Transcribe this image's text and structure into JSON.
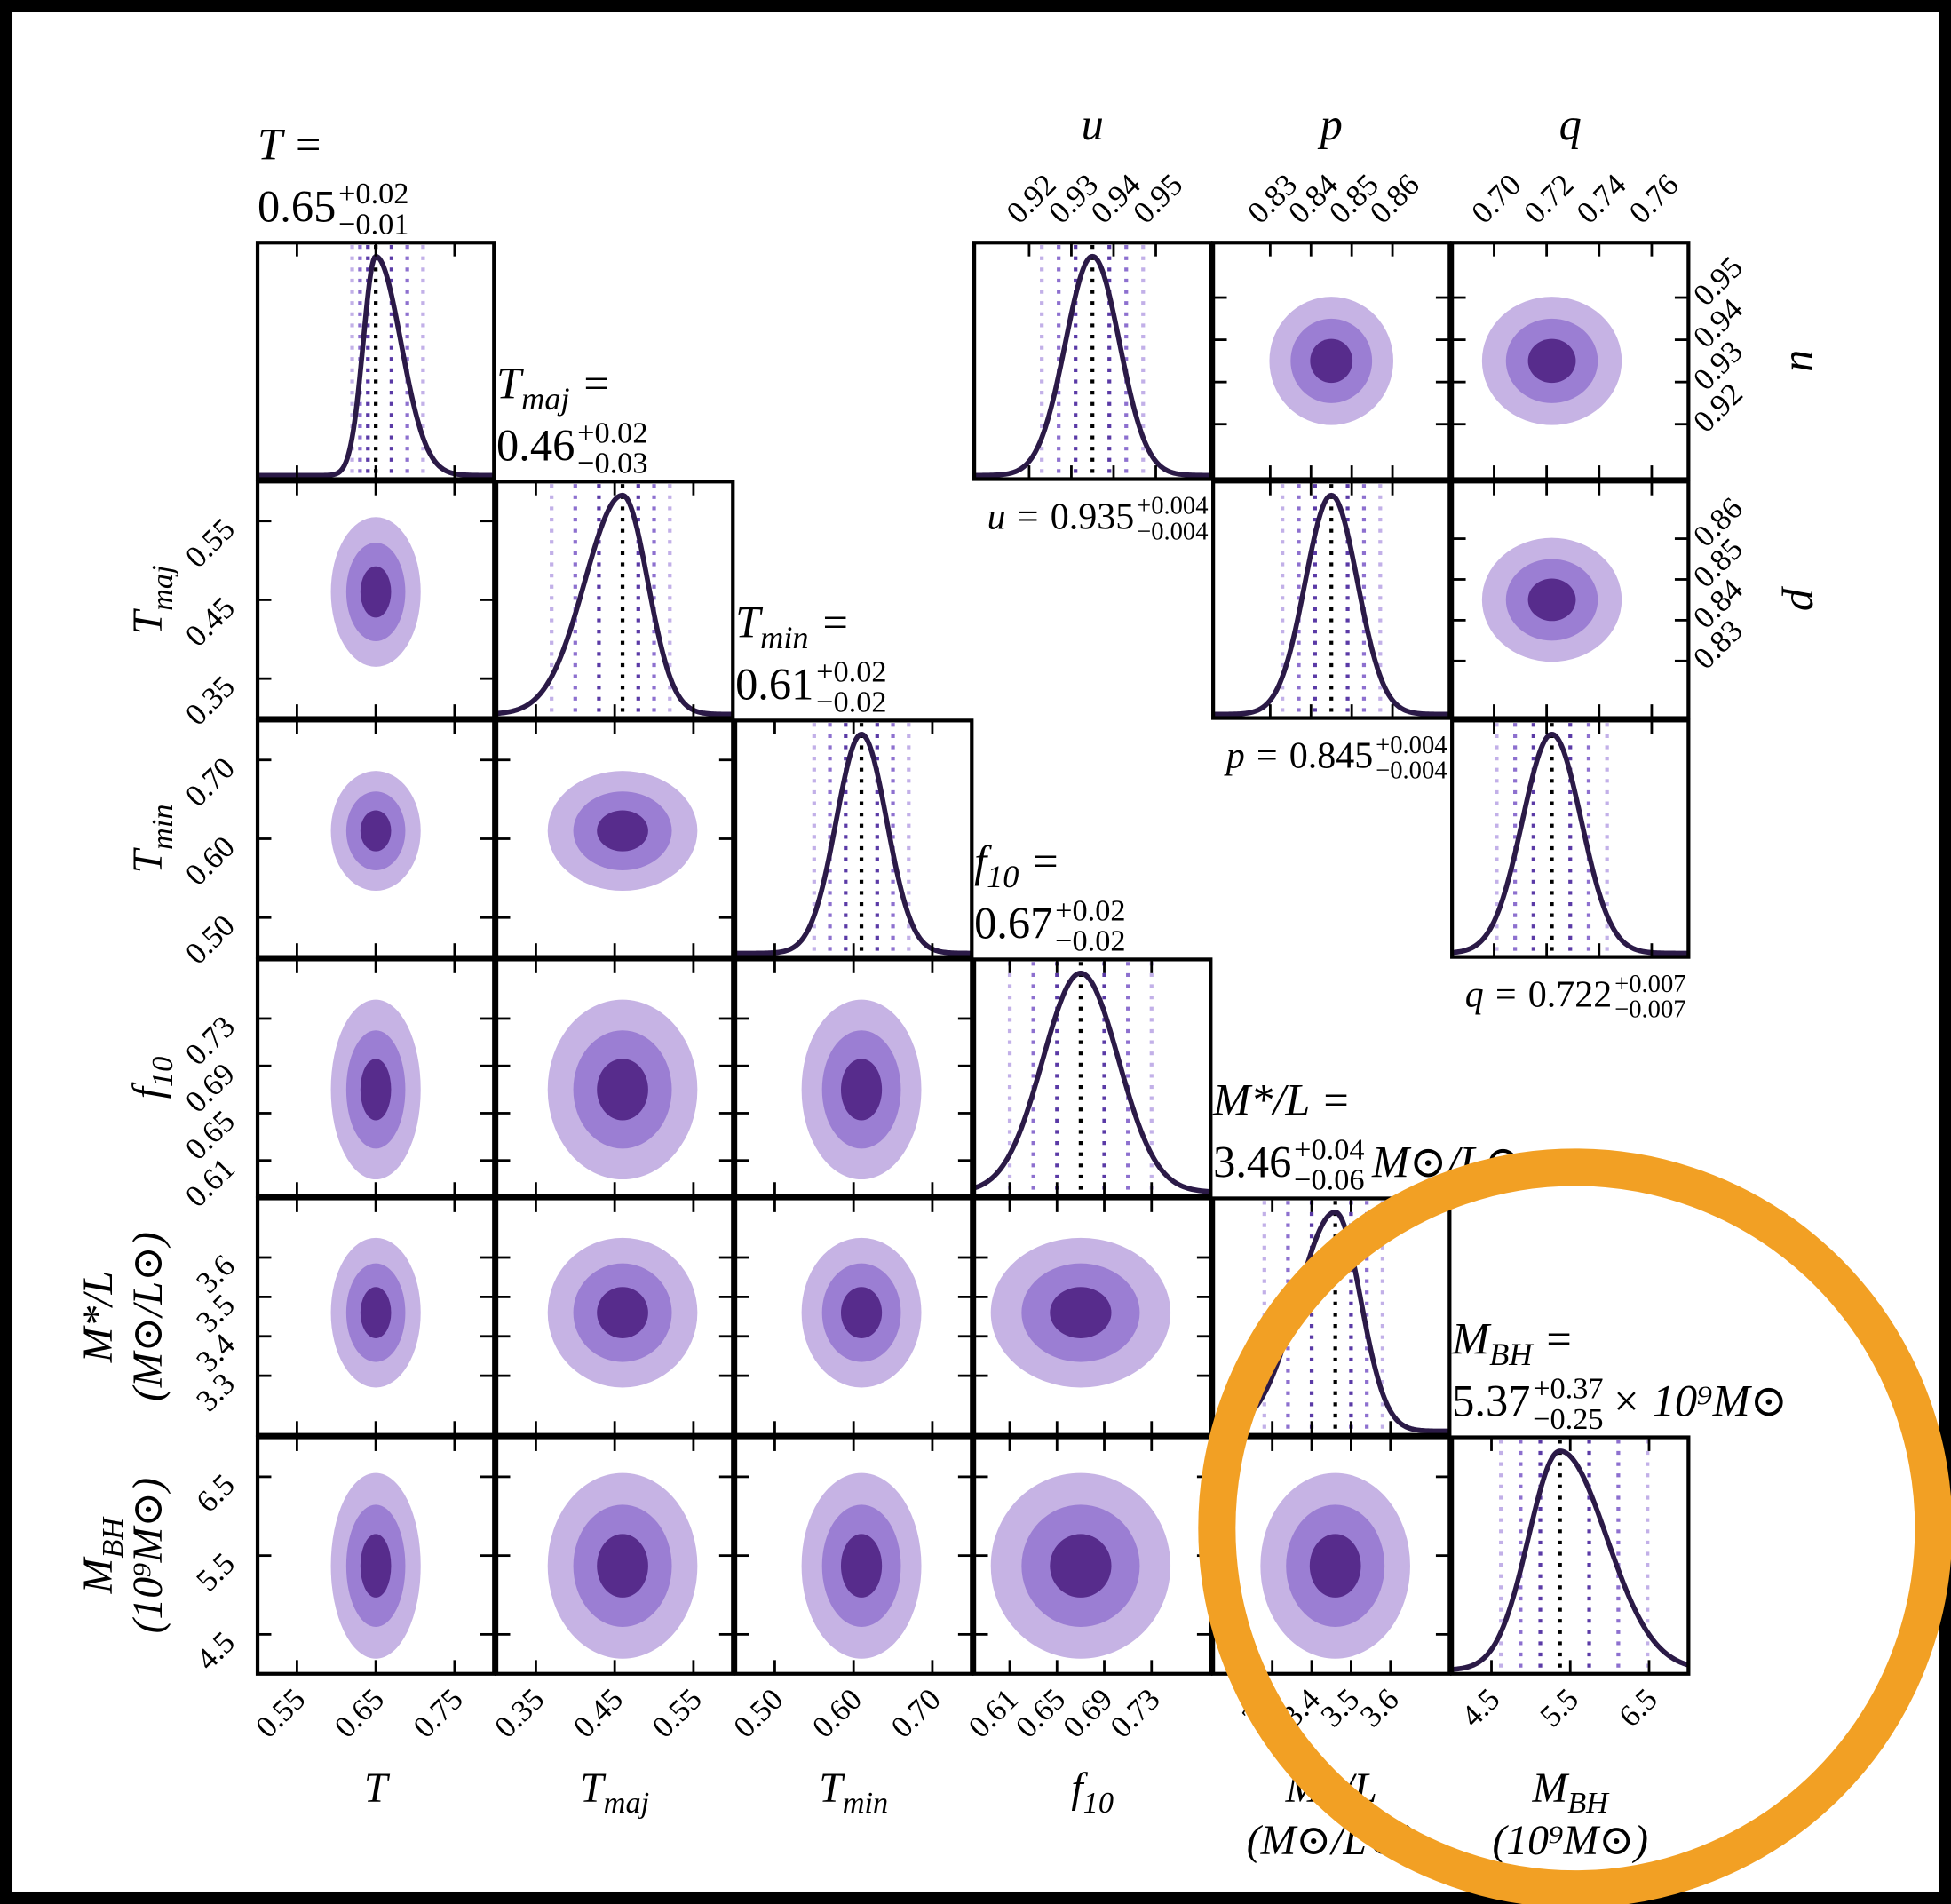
{
  "chart_data": {
    "type": "corner",
    "params": [
      {
        "title": [
          "T ="
        ],
        "label": [
          [
            "T"
          ]
        ],
        "median": 0.65,
        "plus": {
          "value": 0.02,
          "label": "+0.02"
        },
        "minus": {
          "value": -0.01,
          "label": "−0.01"
        },
        "lim": [
          0.5,
          0.8
        ],
        "ticks": [
          0.55,
          0.65,
          0.75
        ]
      },
      {
        "title": [
          "T",
          "maj",
          " ="
        ],
        "label": [
          [
            "T",
            "maj"
          ]
        ],
        "median": 0.46,
        "plus": {
          "value": 0.02,
          "label": "+0.02"
        },
        "minus": {
          "value": -0.03,
          "label": "−0.03"
        },
        "lim": [
          0.3,
          0.6
        ],
        "ticks": [
          0.35,
          0.45,
          0.55
        ]
      },
      {
        "title": [
          "T",
          "min",
          " ="
        ],
        "label": [
          [
            "T",
            "min"
          ]
        ],
        "median": 0.61,
        "plus": {
          "value": 0.02,
          "label": "+0.02"
        },
        "minus": {
          "value": -0.02,
          "label": "−0.02"
        },
        "lim": [
          0.45,
          0.75
        ],
        "ticks": [
          {
            "value": 0.5,
            "label": "0.50"
          },
          {
            "value": 0.6,
            "label": "0.60"
          },
          {
            "value": 0.7,
            "label": "0.70"
          }
        ]
      },
      {
        "title": [
          "f",
          "10",
          " ="
        ],
        "label": [
          [
            "f",
            "10"
          ]
        ],
        "median": 0.67,
        "plus": {
          "value": 0.02,
          "label": "+0.02"
        },
        "minus": {
          "value": -0.02,
          "label": "−0.02"
        },
        "lim": [
          0.58,
          0.78
        ],
        "ticks": [
          0.61,
          0.65,
          0.69,
          0.73
        ]
      },
      {
        "title": [
          "M*/L ="
        ],
        "label": [
          [
            "M*/L"
          ],
          [
            "(M⊙/L⊙)"
          ]
        ],
        "median": 3.46,
        "plus": {
          "value": 0.04,
          "label": "+0.04"
        },
        "minus": {
          "value": -0.06,
          "label": "−0.06"
        },
        "unit": [
          "M⊙/L⊙"
        ],
        "lim": [
          3.15,
          3.75
        ],
        "ticks": [
          3.3,
          3.4,
          3.5,
          3.6
        ]
      },
      {
        "title": [
          "M",
          "BH",
          " ="
        ],
        "label": [
          [
            "M",
            "BH"
          ],
          [
            "(10⁹M⊙)"
          ]
        ],
        "median": 5.37,
        "plus": {
          "value": 0.37,
          "label": "+0.37"
        },
        "minus": {
          "value": -0.25,
          "label": "−0.25"
        },
        "unit": [
          "× 10⁹M⊙"
        ],
        "lim": [
          4,
          7
        ],
        "ticks": [
          4.5,
          5.5,
          6.5
        ]
      }
    ],
    "upper": [
      {
        "title": [
          "u ="
        ],
        "label": [
          [
            "u"
          ]
        ],
        "median": 0.935,
        "plus": {
          "value": 0.004,
          "label": "+0.004"
        },
        "minus": {
          "value": -0.004,
          "label": "−0.004"
        },
        "lim": [
          0.907,
          0.963
        ],
        "ticks": [
          0.92,
          0.93,
          0.94,
          0.95
        ]
      },
      {
        "title": [
          "p ="
        ],
        "label": [
          [
            "p"
          ]
        ],
        "median": 0.845,
        "plus": {
          "value": 0.004,
          "label": "+0.004"
        },
        "minus": {
          "value": -0.004,
          "label": "−0.004"
        },
        "lim": [
          0.816,
          0.874
        ],
        "ticks": [
          0.83,
          0.84,
          0.85,
          0.86
        ]
      },
      {
        "title": [
          "q ="
        ],
        "label": [
          [
            "q"
          ]
        ],
        "median": 0.722,
        "plus": {
          "value": 0.007,
          "label": "+0.007"
        },
        "minus": {
          "value": -0.007,
          "label": "−0.007"
        },
        "lim": [
          0.684,
          0.774
        ],
        "ticks": [
          {
            "value": 0.7,
            "label": "0.70"
          },
          0.72,
          0.74,
          0.76
        ]
      }
    ]
  }
}
